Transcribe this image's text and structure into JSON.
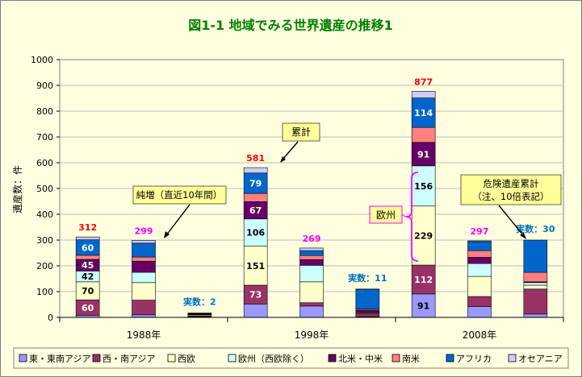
{
  "chart_data": {
    "type": "stacked-bar",
    "title": "図1-1 地域でみる世界遺産の推移1",
    "ylabel": "遺産数：件",
    "ylim": [
      0,
      1000
    ],
    "ytick_step": 100,
    "groups": [
      "1988年",
      "1998年",
      "2008年"
    ],
    "series": [
      {
        "name": "東・東南アジア",
        "color": "#9999ff"
      },
      {
        "name": "西・南アジア",
        "color": "#993366"
      },
      {
        "name": "西欧",
        "color": "#ffffcc"
      },
      {
        "name": "欧州（西欧除く）",
        "color": "#ccffff"
      },
      {
        "name": "北米・中米",
        "color": "#660066"
      },
      {
        "name": "南米",
        "color": "#ff8080"
      },
      {
        "name": "アフリカ",
        "color": "#0066cc"
      },
      {
        "name": "オセアニア",
        "color": "#ccccff"
      }
    ],
    "bars": [
      {
        "group": 0,
        "kind": "累計",
        "values": [
          8,
          60,
          70,
          42,
          45,
          16,
          60,
          11
        ],
        "total": 312,
        "total_color": "#ff0000",
        "labels": [
          null,
          "60",
          "70",
          "42",
          "45",
          null,
          "60",
          null
        ]
      },
      {
        "group": 0,
        "kind": "純増",
        "values": [
          10,
          57,
          68,
          40,
          43,
          16,
          54,
          11
        ],
        "total": 299,
        "total_color": "#ff00ff",
        "labels": [
          null,
          null,
          null,
          null,
          null,
          null,
          null,
          null
        ]
      },
      {
        "group": 0,
        "kind": "危険",
        "values": [
          2,
          3,
          4,
          2,
          2,
          2,
          2,
          0
        ],
        "total": null,
        "labels": [
          null,
          null,
          null,
          null,
          null,
          null,
          null,
          null
        ],
        "note": "実数：2"
      },
      {
        "group": 1,
        "kind": "累計",
        "values": [
          52,
          73,
          151,
          106,
          67,
          32,
          79,
          21
        ],
        "total": 581,
        "total_color": "#ff0000",
        "labels": [
          "",
          "73",
          "151",
          "106",
          "67",
          null,
          "79",
          null
        ]
      },
      {
        "group": 1,
        "kind": "純増",
        "values": [
          44,
          13,
          81,
          64,
          22,
          16,
          19,
          10
        ],
        "total": 269,
        "total_color": "#ff00ff",
        "labels": [
          null,
          null,
          null,
          null,
          null,
          null,
          null,
          null
        ]
      },
      {
        "group": 1,
        "kind": "危険",
        "values": [
          3,
          12,
          2,
          3,
          8,
          4,
          77,
          1
        ],
        "total": null,
        "labels": [
          null,
          null,
          null,
          null,
          null,
          null,
          null,
          null
        ],
        "note": "実数：11"
      },
      {
        "group": 2,
        "kind": "累計",
        "values": [
          91,
          112,
          229,
          156,
          91,
          58,
          114,
          26
        ],
        "total": 877,
        "total_color": "#ff0000",
        "labels": [
          "91",
          "112",
          "229",
          "156",
          "91",
          null,
          "114",
          null
        ]
      },
      {
        "group": 2,
        "kind": "純増",
        "values": [
          42,
          39,
          78,
          50,
          24,
          26,
          35,
          3
        ],
        "total": 297,
        "total_color": "#ff00ff",
        "labels": [
          null,
          null,
          null,
          null,
          null,
          null,
          null,
          null
        ]
      },
      {
        "group": 2,
        "kind": "危険",
        "values": [
          13,
          97,
          15,
          10,
          3,
          37,
          125,
          0
        ],
        "total": null,
        "labels": [
          null,
          null,
          null,
          null,
          null,
          null,
          null,
          null
        ],
        "note": "実数：30"
      }
    ],
    "annotations": [
      {
        "text": "累計"
      },
      {
        "text": "純増（直近10年間）"
      },
      {
        "text": "欧州"
      },
      {
        "text": "危険遺産累計（注、10倍表記）"
      }
    ]
  }
}
